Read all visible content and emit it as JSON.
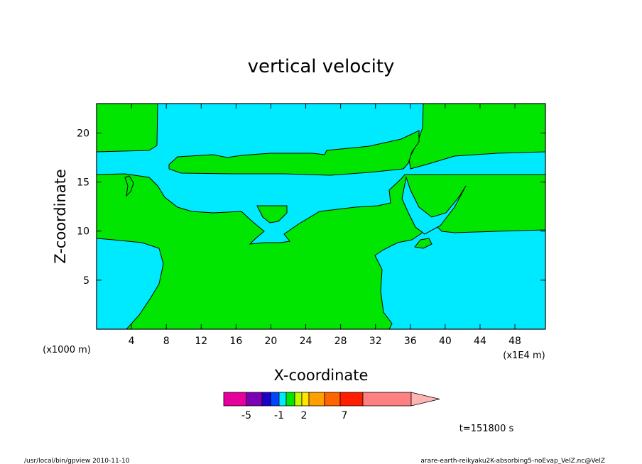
{
  "chart_data": {
    "type": "heatmap",
    "title": "vertical velocity",
    "xlabel": "X-coordinate",
    "ylabel": "Z-coordinate",
    "x_unit": "(x1000 m)",
    "x_scale_note": "(x1E4 m)",
    "xlim": [
      0,
      51.5
    ],
    "ylim": [
      0,
      23
    ],
    "x_ticks": [
      4,
      8,
      12,
      16,
      20,
      24,
      28,
      32,
      36,
      40,
      44,
      48
    ],
    "y_ticks": [
      5,
      10,
      15,
      20
    ],
    "grid": false,
    "regions": {
      "background_fill": "#00eaff",
      "positive_fill": "#00e600"
    },
    "colorbar": {
      "segment_colors": [
        "#e6009c",
        "#7c00b4",
        "#1e00c8",
        "#0046ff",
        "#00eaff",
        "#00e600",
        "#c8f500",
        "#ffe600",
        "#ffa000",
        "#ff6400",
        "#ff1e00",
        "#ff8080"
      ],
      "extension_color": "#ffb4b4",
      "labels": [
        "-5",
        "-1",
        "2",
        "7"
      ]
    },
    "time_label": "t=151800 s",
    "footer_left": "/usr/local/bin/gpview  2010-11-10",
    "footer_right": "arare-earth-reikyaku2K-absorbing5-noEvap_VelZ.nc@VelZ"
  }
}
